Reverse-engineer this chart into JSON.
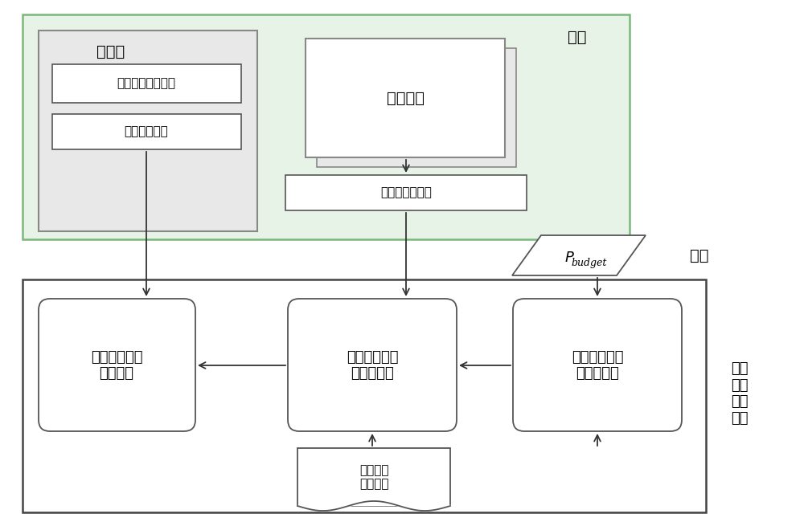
{
  "bg_color": "#ffffff",
  "gray_fill": "#e8e8e8",
  "green_fill": "#e8f3e8",
  "green_edge": "#7ab87a",
  "white_fill": "#ffffff",
  "box_edge": "#555555",
  "bottom_edge": "#444444",
  "arrow_color": "#333333",
  "processor_label": "处理器",
  "coprocessor_label": "协处理器",
  "node_label": "结点",
  "input_label": "输入",
  "module1_label": "功耗控制支持模块",
  "module2_label": "功耗控制接口",
  "query_label": "利用率查询接口",
  "proc_power_label": "处理器功耗设\n置子系统",
  "copro_monitor_label": "协处理器负载\n监控子系统",
  "node_power_label": "结点功耗预算\n设置子系统",
  "node_desc_label": "结点功耗\n描述文件",
  "peak_label": "峰値\n功耗\n控制\n系统"
}
